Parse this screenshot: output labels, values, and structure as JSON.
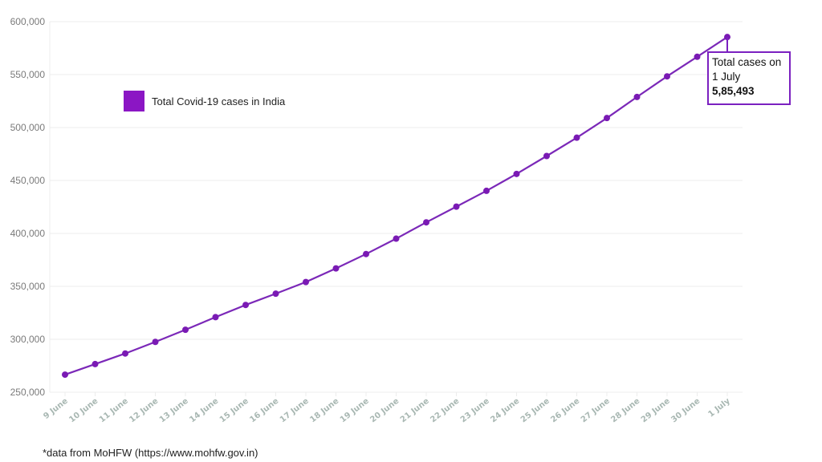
{
  "chart_data": {
    "type": "line",
    "title": "",
    "xlabel": "",
    "ylabel": "",
    "ylim": [
      250000,
      600000
    ],
    "yticks": [
      250000,
      300000,
      350000,
      400000,
      450000,
      500000,
      550000,
      600000
    ],
    "ytick_labels": [
      "250,000",
      "300,000",
      "350,000",
      "400,000",
      "450,000",
      "500,000",
      "550,000",
      "600,000"
    ],
    "grid": true,
    "legend_position": "upper-left",
    "categories": [
      "9 June",
      "10 June",
      "11 June",
      "12 June",
      "13 June",
      "14 June",
      "15 June",
      "16 June",
      "17 June",
      "18 June",
      "19 June",
      "20 June",
      "21 June",
      "22 June",
      "23 June",
      "24 June",
      "25 June",
      "26 June",
      "27 June",
      "28 June",
      "29 June",
      "30 June",
      "1 July"
    ],
    "series": [
      {
        "name": "Total Covid-19 cases in India",
        "color": "#8b16c4",
        "values": [
          266598,
          276583,
          286579,
          297535,
          308993,
          320922,
          332424,
          343091,
          354065,
          366946,
          380532,
          395048,
          410461,
          425282,
          440215,
          456183,
          473105,
          490401,
          508953,
          528859,
          548318,
          566840,
          585493
        ]
      }
    ],
    "annotations": [
      {
        "target": "1 July",
        "text": [
          "Total cases on",
          "1 July",
          "5,85,493"
        ]
      }
    ]
  },
  "legend": {
    "label": "Total Covid-19 cases in India",
    "color": "#8b16c4"
  },
  "callout": {
    "line1": "Total cases on",
    "line2": "1 July",
    "value": "5,85,493"
  },
  "footnote": "*data from MoHFW (https://www.mohfw.gov.in)",
  "colors": {
    "line": "#7b28b8",
    "marker": "#7a1ab4",
    "grid": "#ececec",
    "xtick": "#a9b8b3",
    "ytick": "#7a7a7a"
  }
}
